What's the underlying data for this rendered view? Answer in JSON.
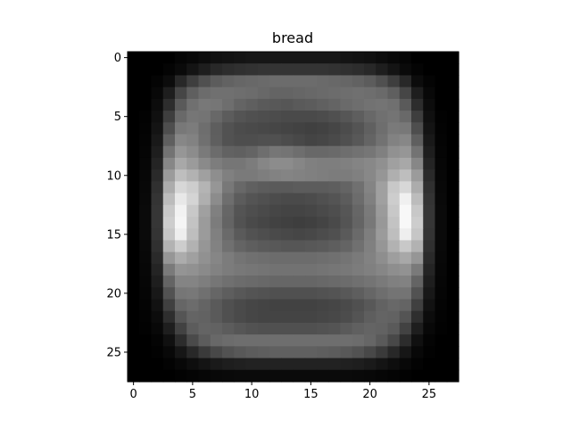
{
  "chart_data": {
    "type": "heatmap",
    "title": "bread",
    "xlabel": "",
    "ylabel": "",
    "colormap": "gray",
    "grid": false,
    "legend": "none",
    "xlim": [
      -0.5,
      27.5
    ],
    "ylim": [
      27.5,
      -0.5
    ],
    "x_ticks": [
      0,
      5,
      10,
      15,
      20,
      25
    ],
    "y_ticks": [
      0,
      5,
      10,
      15,
      20,
      25
    ],
    "x_tick_labels": [
      "0",
      "5",
      "10",
      "15",
      "20",
      "25"
    ],
    "y_tick_labels": [
      "0",
      "5",
      "10",
      "15",
      "20",
      "25"
    ],
    "rows": 28,
    "cols": 28,
    "vmin": 0,
    "vmax": 255,
    "z": [
      [
        0,
        0,
        0,
        0,
        5,
        8,
        12,
        16,
        18,
        20,
        22,
        22,
        22,
        22,
        22,
        22,
        22,
        22,
        20,
        18,
        16,
        12,
        8,
        5,
        0,
        0,
        0,
        0
      ],
      [
        0,
        0,
        0,
        4,
        10,
        20,
        30,
        40,
        45,
        48,
        50,
        52,
        52,
        52,
        52,
        52,
        52,
        50,
        48,
        45,
        40,
        30,
        20,
        10,
        4,
        0,
        0,
        0
      ],
      [
        0,
        0,
        4,
        12,
        40,
        62,
        80,
        92,
        98,
        102,
        104,
        106,
        108,
        108,
        108,
        108,
        106,
        104,
        102,
        98,
        92,
        80,
        62,
        40,
        12,
        4,
        0,
        0
      ],
      [
        0,
        0,
        8,
        30,
        70,
        95,
        108,
        112,
        112,
        110,
        108,
        104,
        100,
        100,
        102,
        104,
        106,
        108,
        110,
        112,
        110,
        106,
        95,
        70,
        30,
        8,
        0,
        0
      ],
      [
        0,
        0,
        12,
        45,
        90,
        112,
        120,
        118,
        110,
        100,
        95,
        90,
        88,
        86,
        90,
        92,
        96,
        100,
        106,
        110,
        114,
        116,
        112,
        90,
        45,
        12,
        0,
        0
      ],
      [
        0,
        2,
        16,
        62,
        105,
        118,
        116,
        104,
        92,
        84,
        80,
        78,
        76,
        74,
        74,
        74,
        76,
        80,
        86,
        94,
        104,
        112,
        116,
        105,
        62,
        16,
        2,
        0
      ],
      [
        0,
        3,
        20,
        78,
        120,
        124,
        110,
        94,
        82,
        76,
        74,
        72,
        70,
        68,
        66,
        64,
        66,
        70,
        76,
        84,
        96,
        110,
        122,
        120,
        78,
        20,
        3,
        0
      ],
      [
        0,
        4,
        25,
        95,
        135,
        130,
        112,
        95,
        82,
        78,
        78,
        80,
        80,
        76,
        72,
        68,
        70,
        74,
        80,
        88,
        100,
        114,
        130,
        135,
        95,
        25,
        4,
        0
      ],
      [
        0,
        5,
        30,
        115,
        150,
        140,
        122,
        108,
        98,
        96,
        100,
        110,
        118,
        116,
        110,
        104,
        104,
        106,
        110,
        114,
        118,
        128,
        145,
        150,
        115,
        30,
        5,
        0
      ],
      [
        0,
        6,
        36,
        135,
        168,
        155,
        138,
        125,
        118,
        118,
        124,
        134,
        140,
        140,
        134,
        128,
        126,
        126,
        128,
        132,
        136,
        144,
        160,
        168,
        135,
        36,
        6,
        0
      ],
      [
        0,
        7,
        42,
        155,
        190,
        178,
        160,
        142,
        128,
        122,
        122,
        126,
        130,
        132,
        130,
        128,
        126,
        124,
        124,
        128,
        136,
        150,
        175,
        190,
        155,
        42,
        7,
        0
      ],
      [
        0,
        8,
        48,
        172,
        215,
        205,
        180,
        150,
        120,
        104,
        96,
        92,
        90,
        90,
        92,
        92,
        92,
        94,
        100,
        112,
        132,
        160,
        200,
        215,
        172,
        48,
        8,
        0
      ],
      [
        0,
        9,
        52,
        188,
        232,
        212,
        175,
        140,
        110,
        92,
        84,
        80,
        76,
        74,
        74,
        76,
        80,
        84,
        92,
        108,
        128,
        160,
        205,
        240,
        188,
        52,
        9,
        0
      ],
      [
        0,
        10,
        54,
        200,
        242,
        200,
        160,
        128,
        102,
        84,
        78,
        74,
        70,
        68,
        68,
        70,
        74,
        78,
        86,
        102,
        122,
        155,
        200,
        248,
        200,
        54,
        10,
        0
      ],
      [
        0,
        10,
        54,
        205,
        245,
        195,
        155,
        124,
        100,
        82,
        74,
        70,
        66,
        64,
        62,
        64,
        68,
        74,
        84,
        100,
        120,
        152,
        195,
        248,
        205,
        54,
        10,
        0
      ],
      [
        0,
        10,
        52,
        198,
        238,
        190,
        155,
        128,
        106,
        90,
        82,
        78,
        74,
        72,
        70,
        72,
        76,
        80,
        90,
        106,
        126,
        155,
        190,
        238,
        198,
        52,
        10,
        0
      ],
      [
        0,
        9,
        48,
        178,
        205,
        178,
        150,
        130,
        112,
        100,
        94,
        90,
        88,
        86,
        86,
        88,
        90,
        94,
        100,
        112,
        128,
        150,
        178,
        200,
        178,
        48,
        9,
        0
      ],
      [
        0,
        8,
        42,
        150,
        172,
        160,
        145,
        134,
        124,
        116,
        112,
        110,
        108,
        108,
        108,
        108,
        110,
        112,
        116,
        122,
        130,
        142,
        158,
        168,
        150,
        42,
        8,
        0
      ],
      [
        0,
        7,
        36,
        122,
        148,
        145,
        138,
        130,
        124,
        120,
        118,
        116,
        114,
        114,
        114,
        114,
        116,
        118,
        120,
        124,
        128,
        134,
        142,
        146,
        122,
        36,
        7,
        0
      ],
      [
        0,
        6,
        30,
        100,
        132,
        132,
        126,
        118,
        112,
        108,
        106,
        104,
        102,
        102,
        102,
        102,
        104,
        106,
        108,
        112,
        116,
        122,
        128,
        130,
        100,
        30,
        6,
        0
      ],
      [
        0,
        5,
        24,
        82,
        118,
        120,
        112,
        102,
        94,
        88,
        84,
        82,
        80,
        80,
        80,
        80,
        82,
        84,
        88,
        94,
        102,
        110,
        116,
        116,
        82,
        24,
        5,
        0
      ],
      [
        0,
        4,
        18,
        64,
        102,
        108,
        100,
        90,
        80,
        74,
        70,
        68,
        66,
        66,
        66,
        66,
        68,
        70,
        74,
        80,
        88,
        98,
        104,
        100,
        64,
        18,
        4,
        0
      ],
      [
        0,
        3,
        12,
        46,
        85,
        100,
        98,
        90,
        80,
        74,
        70,
        68,
        68,
        68,
        68,
        68,
        70,
        72,
        76,
        84,
        94,
        100,
        98,
        84,
        46,
        12,
        3,
        0
      ],
      [
        0,
        2,
        8,
        30,
        66,
        92,
        100,
        98,
        92,
        86,
        82,
        80,
        80,
        80,
        80,
        80,
        82,
        84,
        90,
        96,
        100,
        98,
        90,
        66,
        30,
        8,
        2,
        0
      ],
      [
        0,
        0,
        4,
        16,
        44,
        74,
        92,
        104,
        108,
        110,
        110,
        110,
        110,
        110,
        110,
        110,
        110,
        110,
        110,
        108,
        102,
        90,
        72,
        44,
        16,
        4,
        0,
        0
      ],
      [
        0,
        0,
        2,
        8,
        22,
        40,
        58,
        72,
        82,
        88,
        92,
        94,
        96,
        96,
        96,
        96,
        94,
        92,
        88,
        82,
        72,
        58,
        40,
        22,
        8,
        2,
        0,
        0
      ],
      [
        0,
        0,
        0,
        3,
        8,
        14,
        20,
        26,
        30,
        32,
        34,
        34,
        34,
        34,
        34,
        34,
        34,
        34,
        32,
        30,
        26,
        20,
        14,
        8,
        3,
        0,
        0,
        0
      ],
      [
        0,
        0,
        0,
        0,
        2,
        4,
        6,
        8,
        9,
        10,
        10,
        10,
        10,
        10,
        10,
        10,
        10,
        10,
        10,
        9,
        8,
        6,
        4,
        2,
        0,
        0,
        0,
        0
      ]
    ]
  }
}
